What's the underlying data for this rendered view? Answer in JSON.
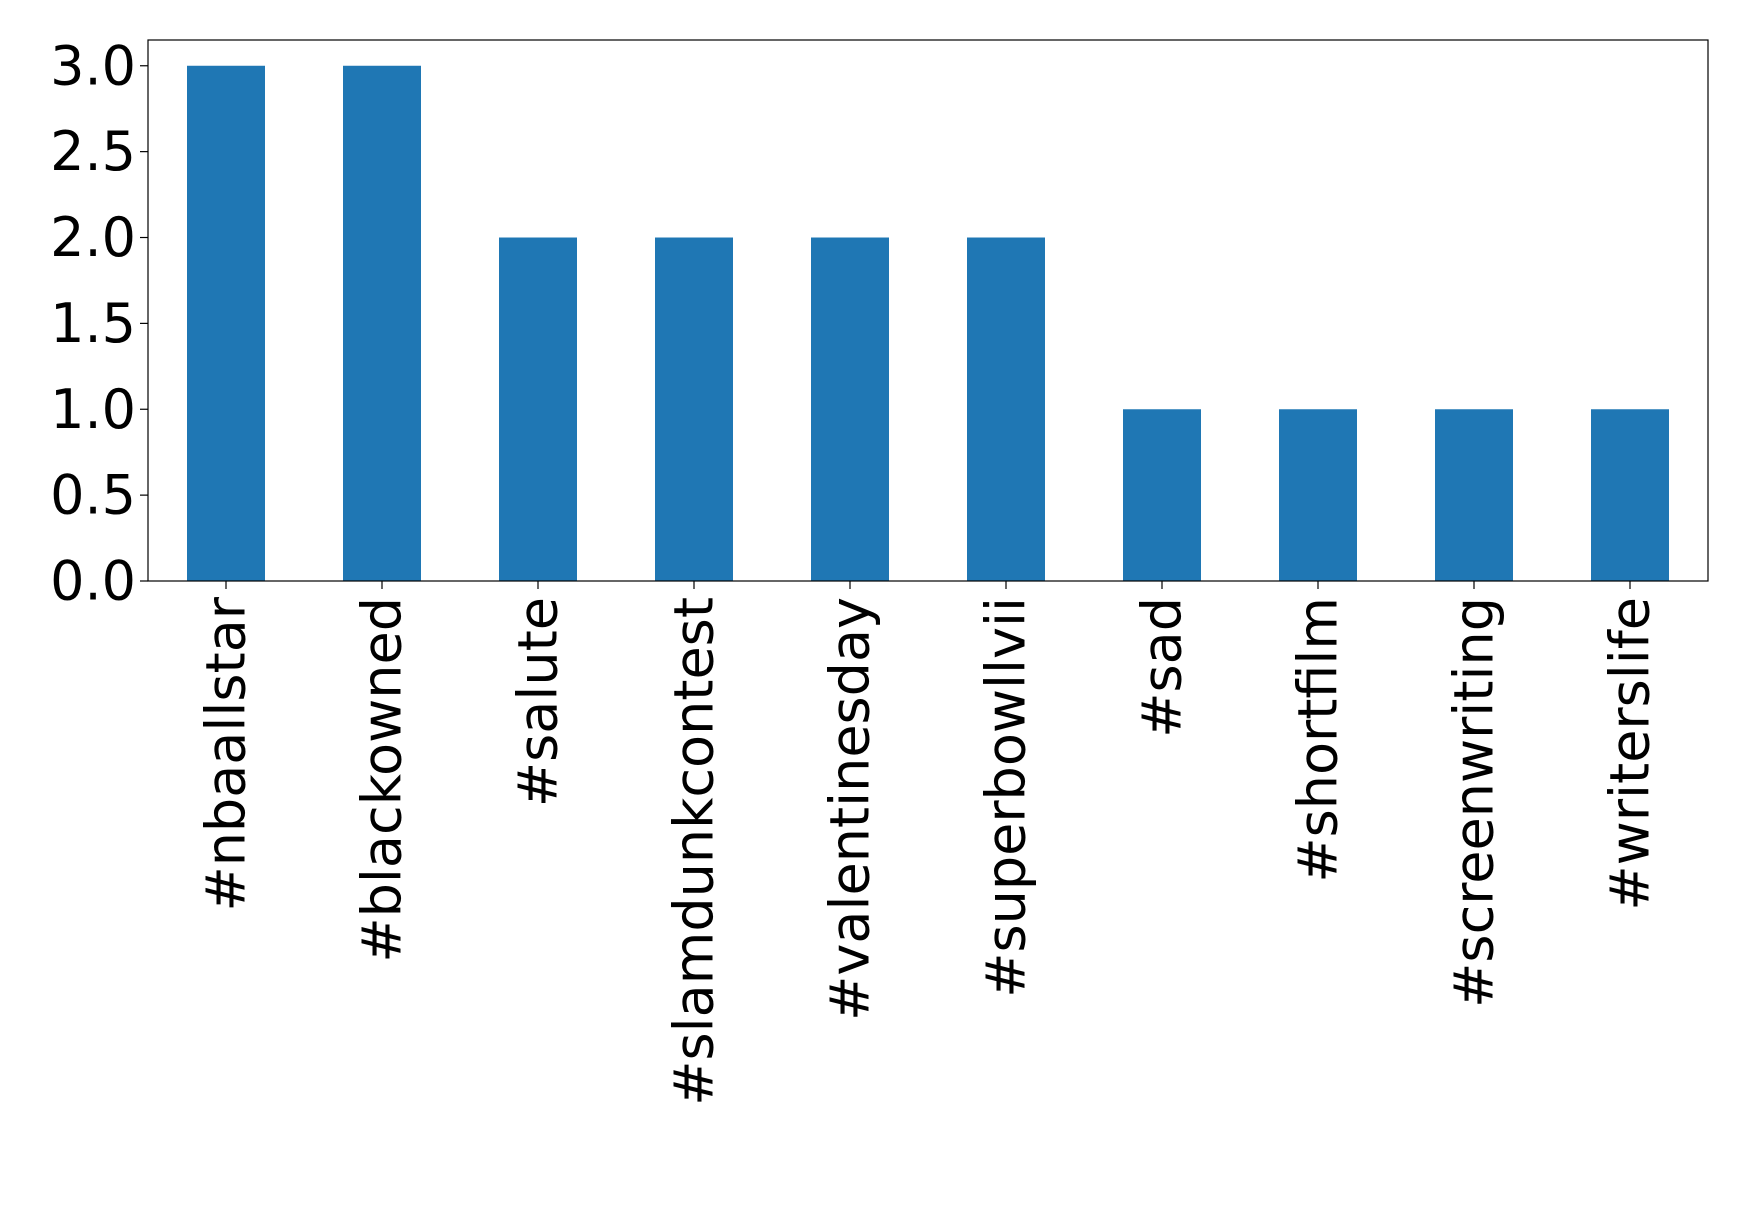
{
  "chart_data": {
    "type": "bar",
    "categories": [
      "#nbaallstar",
      "#blackowned",
      "#salute",
      "#slamdunkcontest",
      "#valentinesday",
      "#superbowllvii",
      "#sad",
      "#shortfilm",
      "#screenwriting",
      "#writerslife"
    ],
    "values": [
      3,
      3,
      2,
      2,
      2,
      2,
      1,
      1,
      1,
      1
    ],
    "color": "#1f77b4",
    "ylim": [
      0,
      3.15
    ],
    "yticks": [
      {
        "value": 0,
        "label": "0.0"
      },
      {
        "value": 0.5,
        "label": "0.5"
      },
      {
        "value": 1,
        "label": "1.0"
      },
      {
        "value": 1.5,
        "label": "1.5"
      },
      {
        "value": 2,
        "label": "2.0"
      },
      {
        "value": 2.5,
        "label": "2.5"
      },
      {
        "value": 3,
        "label": "3.0"
      }
    ],
    "grid": false
  }
}
